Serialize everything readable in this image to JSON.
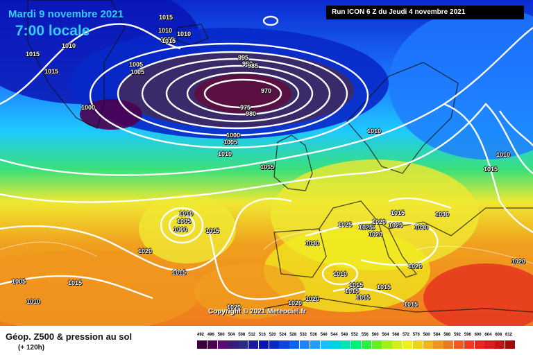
{
  "header": {
    "date": "Mardi 9 novembre 2021",
    "hour": "7:00 locale",
    "run": "Run ICON 6 Z du Jeudi 4 novembre 2021"
  },
  "copyright": "Copyright © 2021 Meteociel.fr",
  "legend": {
    "title": "Géop. Z500 & pression au sol",
    "subtitle": "(+ 120h)",
    "scale_values": [
      "492",
      "496",
      "500",
      "504",
      "508",
      "512",
      "516",
      "520",
      "524",
      "528",
      "532",
      "536",
      "540",
      "544",
      "548",
      "552",
      "556",
      "560",
      "564",
      "568",
      "572",
      "576",
      "580",
      "584",
      "588",
      "592",
      "596",
      "600",
      "604",
      "608",
      "612"
    ],
    "scale_colors": [
      "#3a003a",
      "#4b0050",
      "#5a0a70",
      "#3a1a7a",
      "#2a2a8a",
      "#1a1aa0",
      "#0a14b4",
      "#0828c8",
      "#0a46dc",
      "#0a64f0",
      "#1e82ff",
      "#1ea0ff",
      "#1ebeff",
      "#00d2e6",
      "#00e6b4",
      "#00f07a",
      "#28f03c",
      "#64f01e",
      "#a0f01e",
      "#d2f01e",
      "#f0f01e",
      "#f0d21e",
      "#f0b41e",
      "#f0961e",
      "#f0781e",
      "#f05a1e",
      "#f03c1e",
      "#e6281e",
      "#d21e1e",
      "#be1414",
      "#a00a0a"
    ]
  },
  "isobars": [
    "1015",
    "1010",
    "1010",
    "1005",
    "1015",
    "1010",
    "1015",
    "1005",
    "1005",
    "1015",
    "1000",
    "995",
    "990",
    "985",
    "970",
    "975",
    "980",
    "1000",
    "1005",
    "1010",
    "1010",
    "1015",
    "1010",
    "1015",
    "1010",
    "1005",
    "1000",
    "1015",
    "1020",
    "1015",
    "1005",
    "1015",
    "1010",
    "1020",
    "1030",
    "1025",
    "1020",
    "1025",
    "1025",
    "1015",
    "1025",
    "1030",
    "1030",
    "1020",
    "1020",
    "1010",
    "1015",
    "1015",
    "1015",
    "1015",
    "1020",
    "1020",
    "1015",
    "1020"
  ],
  "colors": {
    "deep_low": "#5a1040",
    "low_ring": "#3a2a6a",
    "blue_dark": "#0a2ad0",
    "blue": "#1e7aff",
    "cyan": "#1ec8ff",
    "green": "#3ae07a",
    "yellow": "#f0e832",
    "orange": "#f0a01e",
    "orange_dark": "#f07a1e",
    "red": "#e63a1e"
  }
}
